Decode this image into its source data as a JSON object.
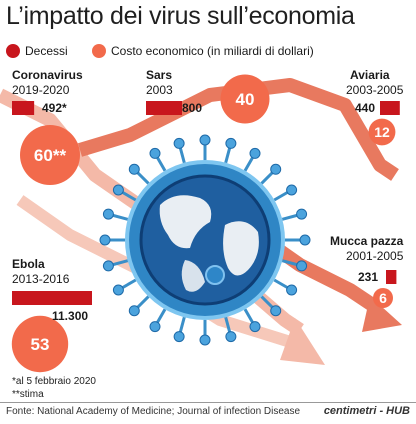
{
  "title": "L’impatto dei virus sull’economia",
  "legend": {
    "deaths": "Decessi",
    "cost": "Costo economico (in miliardi di dollari)"
  },
  "colors": {
    "deaths": "#c8161d",
    "cost": "#f26a4b",
    "arrow": "#e8795f",
    "virus": "#3a8fc8"
  },
  "chart_data": {
    "type": "bar",
    "title": "L’impatto dei virus sull’economia",
    "series": [
      {
        "name": "Decessi",
        "values": [
          492,
          800,
          440,
          11300,
          231
        ]
      },
      {
        "name": "Costo economico (in miliardi di dollari)",
        "values": [
          60,
          40,
          12,
          53,
          6
        ]
      }
    ],
    "categories": [
      "Coronavirus",
      "Sars",
      "Aviaria",
      "Ebola",
      "Mucca pazza"
    ],
    "periods": [
      "2019-2020",
      "2003",
      "2003-2005",
      "2013-2016",
      "2001-2005"
    ],
    "death_labels": [
      "492*",
      "800",
      "440",
      "11.300",
      "231"
    ],
    "cost_labels": [
      "60**",
      "40",
      "12",
      "53",
      "6"
    ]
  },
  "notes": {
    "n1": "*al 5 febbraio 2020",
    "n2": "**stima"
  },
  "source": "Fonte: National Academy of Medicine; Journal of infection Disease",
  "brand": "centimetri - HUB"
}
